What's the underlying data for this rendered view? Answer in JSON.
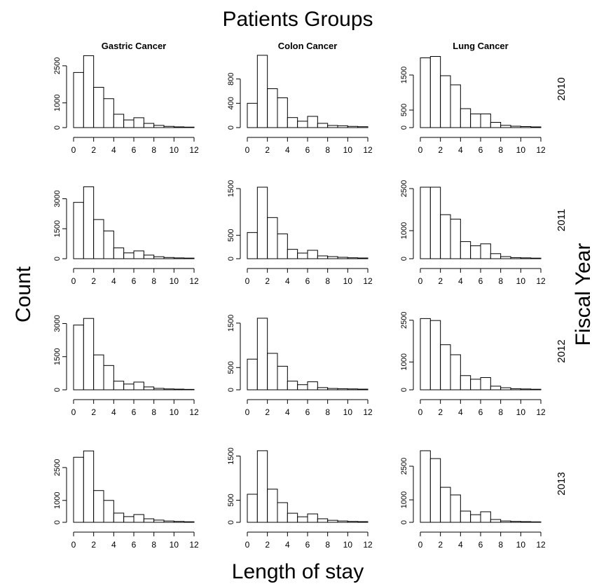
{
  "title": "Patients Groups",
  "xlabel": "Length of stay",
  "ylabel": "Count",
  "right_label": "Fiscal Year",
  "columns": [
    "Gastric Cancer",
    "Colon Cancer",
    "Lung Cancer"
  ],
  "rows": [
    "2010",
    "2011",
    "2012",
    "2013"
  ],
  "chart_data": [
    {
      "type": "histogram",
      "bins": [
        0,
        1,
        2,
        3,
        4,
        5,
        6,
        7,
        8,
        9,
        10,
        11,
        12
      ],
      "values": [
        2230,
        2910,
        1630,
        1170,
        540,
        310,
        400,
        170,
        90,
        50,
        30,
        20
      ],
      "color": "#ffffff",
      "xlim": [
        0,
        12
      ],
      "xticks": [
        0,
        2,
        4,
        6,
        8,
        10,
        12
      ],
      "ylim": [
        0,
        2950
      ],
      "yticks": [
        0,
        1000,
        2500
      ]
    },
    {
      "type": "histogram",
      "bins": [
        0,
        1,
        2,
        3,
        4,
        5,
        6,
        7,
        8,
        9,
        10,
        11,
        12
      ],
      "values": [
        400,
        1190,
        640,
        490,
        165,
        105,
        185,
        70,
        35,
        30,
        20,
        15
      ],
      "color": "#ffffff",
      "xlim": [
        0,
        12
      ],
      "xticks": [
        0,
        2,
        4,
        6,
        8,
        10,
        12
      ],
      "ylim": [
        0,
        1200
      ],
      "yticks": [
        0,
        400,
        800
      ]
    },
    {
      "type": "histogram",
      "bins": [
        0,
        1,
        2,
        3,
        4,
        5,
        6,
        7,
        8,
        9,
        10,
        11,
        12
      ],
      "values": [
        1990,
        2030,
        1480,
        1220,
        540,
        390,
        390,
        150,
        65,
        40,
        30,
        20
      ],
      "color": "#ffffff",
      "xlim": [
        0,
        12
      ],
      "xticks": [
        0,
        2,
        4,
        6,
        8,
        10,
        12
      ],
      "ylim": [
        0,
        2080
      ],
      "yticks": [
        0,
        500,
        1500
      ]
    },
    {
      "type": "histogram",
      "bins": [
        0,
        1,
        2,
        3,
        4,
        5,
        6,
        7,
        8,
        9,
        10,
        11,
        12
      ],
      "values": [
        2820,
        3600,
        1960,
        1390,
        540,
        290,
        390,
        180,
        100,
        60,
        40,
        30
      ],
      "color": "#ffffff",
      "xlim": [
        0,
        12
      ],
      "xticks": [
        0,
        2,
        4,
        6,
        8,
        10,
        12
      ],
      "ylim": [
        0,
        3650
      ],
      "yticks": [
        0,
        1500,
        3000
      ]
    },
    {
      "type": "histogram",
      "bins": [
        0,
        1,
        2,
        3,
        4,
        5,
        6,
        7,
        8,
        9,
        10,
        11,
        12
      ],
      "values": [
        560,
        1530,
        880,
        530,
        200,
        120,
        180,
        60,
        45,
        30,
        20,
        15
      ],
      "color": "#ffffff",
      "xlim": [
        0,
        12
      ],
      "xticks": [
        0,
        2,
        4,
        6,
        8,
        10,
        12
      ],
      "ylim": [
        0,
        1560
      ],
      "yticks": [
        0,
        500,
        1500
      ]
    },
    {
      "type": "histogram",
      "bins": [
        0,
        1,
        2,
        3,
        4,
        5,
        6,
        7,
        8,
        9,
        10,
        11,
        12
      ],
      "values": [
        2550,
        2550,
        1570,
        1410,
        610,
        460,
        530,
        180,
        75,
        40,
        30,
        20
      ],
      "color": "#ffffff",
      "xlim": [
        0,
        12
      ],
      "xticks": [
        0,
        2,
        4,
        6,
        8,
        10,
        12
      ],
      "ylim": [
        0,
        2600
      ],
      "yticks": [
        0,
        1000,
        2500
      ]
    },
    {
      "type": "histogram",
      "bins": [
        0,
        1,
        2,
        3,
        4,
        5,
        6,
        7,
        8,
        9,
        10,
        11,
        12
      ],
      "values": [
        2930,
        3230,
        1580,
        1100,
        390,
        260,
        350,
        130,
        65,
        40,
        30,
        20
      ],
      "color": "#ffffff",
      "xlim": [
        0,
        12
      ],
      "xticks": [
        0,
        2,
        4,
        6,
        8,
        10,
        12
      ],
      "ylim": [
        0,
        3300
      ],
      "yticks": [
        0,
        1500,
        3000
      ]
    },
    {
      "type": "histogram",
      "bins": [
        0,
        1,
        2,
        3,
        4,
        5,
        6,
        7,
        8,
        9,
        10,
        11,
        12
      ],
      "values": [
        690,
        1610,
        820,
        530,
        195,
        115,
        180,
        50,
        30,
        25,
        20,
        15
      ],
      "color": "#ffffff",
      "xlim": [
        0,
        12
      ],
      "xticks": [
        0,
        2,
        4,
        6,
        8,
        10,
        12
      ],
      "ylim": [
        0,
        1640
      ],
      "yticks": [
        0,
        500,
        1500
      ]
    },
    {
      "type": "histogram",
      "bins": [
        0,
        1,
        2,
        3,
        4,
        5,
        6,
        7,
        8,
        9,
        10,
        11,
        12
      ],
      "values": [
        2560,
        2490,
        1620,
        1260,
        510,
        380,
        440,
        130,
        75,
        40,
        30,
        20
      ],
      "color": "#ffffff",
      "xlim": [
        0,
        12
      ],
      "xticks": [
        0,
        2,
        4,
        6,
        8,
        10,
        12
      ],
      "ylim": [
        0,
        2620
      ],
      "yticks": [
        0,
        1000,
        2500
      ]
    },
    {
      "type": "histogram",
      "bins": [
        0,
        1,
        2,
        3,
        4,
        5,
        6,
        7,
        8,
        9,
        10,
        11,
        12
      ],
      "values": [
        2970,
        3260,
        1450,
        1000,
        420,
        260,
        355,
        160,
        100,
        60,
        40,
        25
      ],
      "color": "#ffffff",
      "xlim": [
        0,
        12
      ],
      "xticks": [
        0,
        2,
        4,
        6,
        8,
        10,
        12
      ],
      "ylim": [
        0,
        3330
      ],
      "yticks": [
        0,
        1000,
        2500
      ]
    },
    {
      "type": "histogram",
      "bins": [
        0,
        1,
        2,
        3,
        4,
        5,
        6,
        7,
        8,
        9,
        10,
        11,
        12
      ],
      "values": [
        635,
        1620,
        750,
        445,
        205,
        125,
        190,
        80,
        45,
        30,
        20,
        15
      ],
      "color": "#ffffff",
      "xlim": [
        0,
        12
      ],
      "xticks": [
        0,
        2,
        4,
        6,
        8,
        10,
        12
      ],
      "ylim": [
        0,
        1650
      ],
      "yticks": [
        0,
        500,
        1500
      ]
    },
    {
      "type": "histogram",
      "bins": [
        0,
        1,
        2,
        3,
        4,
        5,
        6,
        7,
        8,
        9,
        10,
        11,
        12
      ],
      "values": [
        3190,
        2840,
        1560,
        1220,
        500,
        340,
        470,
        125,
        60,
        40,
        30,
        20
      ],
      "color": "#ffffff",
      "xlim": [
        0,
        12
      ],
      "xticks": [
        0,
        2,
        4,
        6,
        8,
        10,
        12
      ],
      "ylim": [
        0,
        3250
      ],
      "yticks": [
        0,
        1000,
        2500
      ]
    }
  ]
}
